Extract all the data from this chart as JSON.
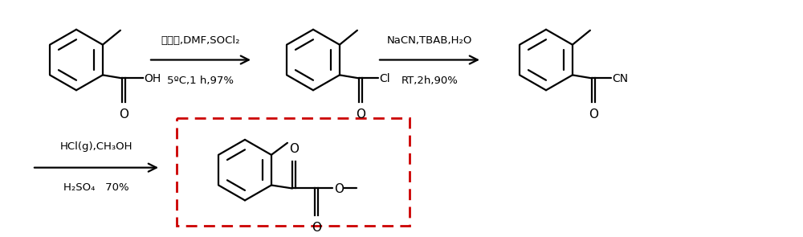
{
  "bg_color": "#ffffff",
  "line_color": "#000000",
  "dashed_box_color": "#cc0000",
  "reaction1_label_top": "二甲苯,DMF,SOCl₂",
  "reaction1_label_bot": "5ºC,1 h,97%",
  "reaction2_label_top": "NaCN,TBAB,H₂O",
  "reaction2_label_bot": "RT,2h,90%",
  "reaction3_label_top": "HCl(g),CH₃OH",
  "reaction3_label_bot": "H₂SO₄   70%",
  "lw": 1.6,
  "r_ring": 0.33,
  "figw": 10.0,
  "figh": 2.95
}
